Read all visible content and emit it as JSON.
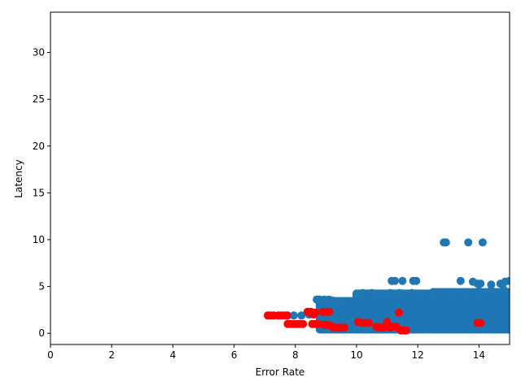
{
  "chart_data": {
    "type": "scatter",
    "title": "",
    "xlabel": "Error Rate",
    "ylabel": "Latency",
    "xlim": [
      0,
      15
    ],
    "ylim": [
      -1.2,
      34.3
    ],
    "xticks": [
      0,
      2,
      4,
      6,
      8,
      10,
      12,
      14
    ],
    "yticks": [
      0,
      5,
      10,
      15,
      20,
      25,
      30
    ],
    "grid": false,
    "legend": "none",
    "colors": {
      "normal": "#1f77b4",
      "anomaly": "#ff0000"
    },
    "cluster": {
      "description_points": "dense band of normal points",
      "x_range": [
        8.8,
        15
      ],
      "y_range": [
        0.4,
        4.4
      ],
      "x_left_min": [
        8.8,
        10.0,
        12.6
      ],
      "band_top": [
        3.7,
        4.3,
        4.5
      ]
    },
    "series": [
      {
        "role": "normal",
        "points": [
          [
            12.85,
            9.7
          ],
          [
            12.92,
            9.7
          ],
          [
            13.65,
            9.7
          ],
          [
            14.12,
            9.7
          ],
          [
            11.15,
            5.6
          ],
          [
            11.25,
            5.6
          ],
          [
            11.5,
            5.6
          ],
          [
            11.85,
            5.6
          ],
          [
            11.95,
            5.6
          ],
          [
            13.4,
            5.6
          ],
          [
            13.8,
            5.5
          ],
          [
            13.95,
            5.3
          ],
          [
            14.05,
            5.3
          ],
          [
            14.4,
            5.2
          ],
          [
            14.7,
            5.3
          ],
          [
            14.85,
            5.5
          ],
          [
            15.0,
            5.6
          ],
          [
            7.75,
            1.9
          ],
          [
            7.95,
            1.9
          ],
          [
            8.2,
            1.9
          ],
          [
            8.45,
            2.0
          ],
          [
            8.6,
            2.0
          ],
          [
            8.7,
            3.6
          ],
          [
            8.8,
            3.6
          ],
          [
            8.95,
            3.6
          ],
          [
            9.1,
            3.6
          ],
          [
            9.2,
            3.5
          ],
          [
            10.0,
            4.2
          ],
          [
            10.2,
            4.3
          ],
          [
            10.5,
            4.3
          ],
          [
            10.8,
            4.2
          ],
          [
            11.1,
            4.3
          ],
          [
            11.4,
            4.3
          ],
          [
            11.8,
            4.3
          ],
          [
            12.2,
            4.2
          ],
          [
            12.5,
            4.4
          ],
          [
            12.8,
            4.4
          ],
          [
            13.2,
            4.4
          ],
          [
            13.6,
            4.4
          ],
          [
            14.0,
            4.5
          ],
          [
            14.4,
            4.6
          ],
          [
            14.8,
            4.7
          ]
        ]
      },
      {
        "role": "anomaly",
        "points": [
          [
            7.1,
            1.9
          ],
          [
            7.2,
            1.9
          ],
          [
            7.3,
            1.9
          ],
          [
            7.45,
            1.9
          ],
          [
            7.55,
            1.9
          ],
          [
            7.65,
            1.9
          ],
          [
            7.72,
            1.9
          ],
          [
            7.75,
            1.0
          ],
          [
            7.85,
            1.0
          ],
          [
            7.95,
            1.0
          ],
          [
            8.05,
            1.0
          ],
          [
            8.15,
            1.0
          ],
          [
            8.25,
            1.0
          ],
          [
            8.4,
            2.3
          ],
          [
            8.5,
            2.3
          ],
          [
            8.55,
            2.1
          ],
          [
            8.6,
            2.0
          ],
          [
            8.65,
            2.2
          ],
          [
            8.55,
            1.0
          ],
          [
            8.65,
            1.0
          ],
          [
            8.75,
            1.0
          ],
          [
            8.9,
            2.3
          ],
          [
            9.0,
            2.3
          ],
          [
            9.1,
            2.3
          ],
          [
            8.95,
            0.9
          ],
          [
            9.05,
            0.9
          ],
          [
            9.15,
            0.8
          ],
          [
            9.25,
            0.6
          ],
          [
            9.35,
            0.6
          ],
          [
            9.45,
            0.6
          ],
          [
            9.6,
            0.6
          ],
          [
            10.05,
            1.2
          ],
          [
            10.2,
            1.1
          ],
          [
            10.3,
            1.1
          ],
          [
            10.4,
            1.1
          ],
          [
            10.65,
            0.7
          ],
          [
            10.75,
            0.6
          ],
          [
            10.85,
            0.6
          ],
          [
            10.95,
            0.7
          ],
          [
            11.0,
            1.2
          ],
          [
            11.1,
            0.6
          ],
          [
            11.2,
            0.7
          ],
          [
            11.3,
            0.7
          ],
          [
            11.38,
            2.2
          ],
          [
            11.45,
            0.3
          ],
          [
            11.55,
            0.3
          ],
          [
            11.62,
            0.3
          ],
          [
            13.95,
            1.1
          ],
          [
            14.05,
            1.1
          ]
        ]
      }
    ]
  }
}
